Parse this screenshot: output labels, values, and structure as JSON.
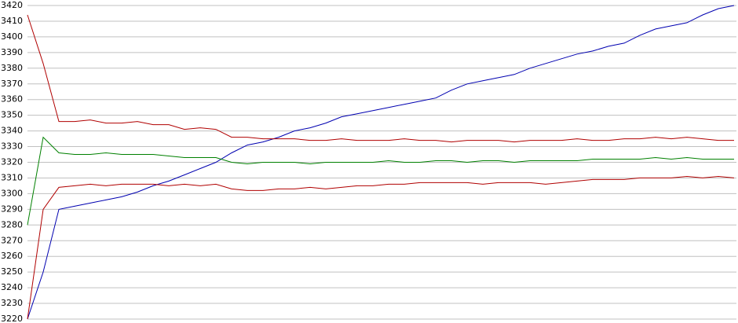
{
  "chart_data": {
    "type": "line",
    "ylim": [
      3220,
      3420
    ],
    "yticks": [
      3220,
      3230,
      3240,
      3250,
      3260,
      3270,
      3280,
      3290,
      3300,
      3310,
      3320,
      3330,
      3340,
      3350,
      3360,
      3370,
      3380,
      3390,
      3400,
      3410,
      3420
    ],
    "grid": true,
    "series": [
      {
        "color": "#0000b0",
        "values": [
          3220,
          3250,
          3290,
          3292,
          3294,
          3296,
          3298,
          3301,
          3305,
          3308,
          3312,
          3316,
          3320,
          3326,
          3331,
          3333,
          3336,
          3340,
          3342,
          3345,
          3349,
          3351,
          3353,
          3355,
          3357,
          3359,
          3361,
          3366,
          3370,
          3372,
          3374,
          3376,
          3380,
          3383,
          3386,
          3389,
          3391,
          3394,
          3396,
          3401,
          3405,
          3407,
          3409,
          3414,
          3418,
          3420
        ]
      },
      {
        "color": "#b00000",
        "values": [
          3414,
          3383,
          3346,
          3346,
          3347,
          3345,
          3345,
          3346,
          3344,
          3344,
          3341,
          3342,
          3341,
          3336,
          3336,
          3335,
          3335,
          3335,
          3334,
          3334,
          3335,
          3334,
          3334,
          3334,
          3335,
          3334,
          3334,
          3333,
          3334,
          3334,
          3334,
          3333,
          3334,
          3334,
          3334,
          3335,
          3334,
          3334,
          3335,
          3335,
          3336,
          3335,
          3336,
          3335,
          3334,
          3334
        ]
      },
      {
        "color": "#b00000",
        "values": [
          3220,
          3290,
          3304,
          3305,
          3306,
          3305,
          3306,
          3306,
          3306,
          3305,
          3306,
          3305,
          3306,
          3303,
          3302,
          3302,
          3303,
          3303,
          3304,
          3303,
          3304,
          3305,
          3305,
          3306,
          3306,
          3307,
          3307,
          3307,
          3307,
          3306,
          3307,
          3307,
          3307,
          3306,
          3307,
          3308,
          3309,
          3309,
          3309,
          3310,
          3310,
          3310,
          3311,
          3310,
          3311,
          3310
        ]
      },
      {
        "color": "#008000",
        "values": [
          3280,
          3336,
          3326,
          3325,
          3325,
          3326,
          3325,
          3325,
          3325,
          3324,
          3323,
          3323,
          3323,
          3320,
          3319,
          3320,
          3320,
          3320,
          3319,
          3320,
          3320,
          3320,
          3320,
          3321,
          3320,
          3320,
          3321,
          3321,
          3320,
          3321,
          3321,
          3320,
          3321,
          3321,
          3321,
          3321,
          3322,
          3322,
          3322,
          3322,
          3323,
          3322,
          3323,
          3322,
          3322,
          3322
        ]
      }
    ]
  }
}
